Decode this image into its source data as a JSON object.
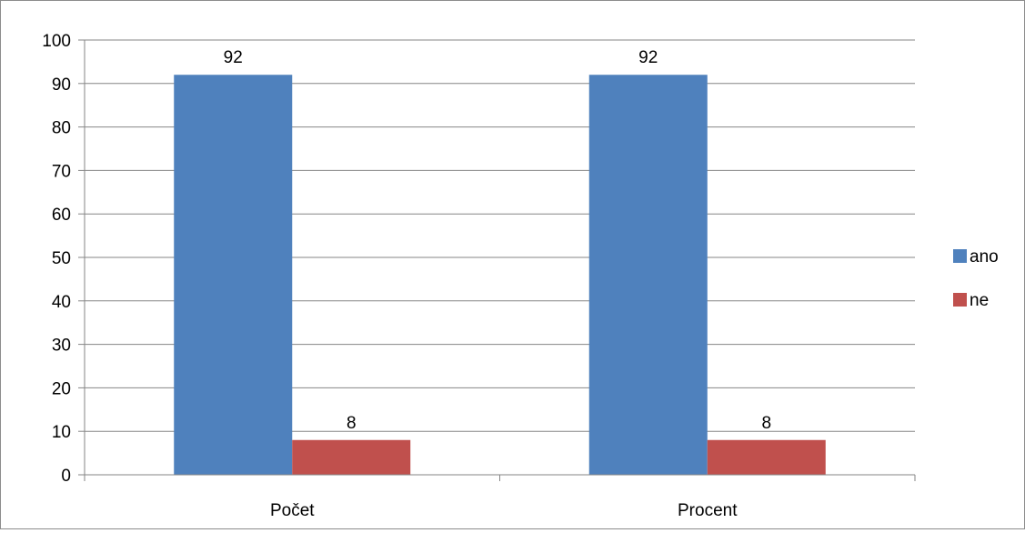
{
  "chart_data": {
    "type": "bar",
    "title": "",
    "xlabel": "",
    "ylabel": "",
    "categories": [
      "Počet",
      "Procent"
    ],
    "series": [
      {
        "name": "ano",
        "values": [
          92,
          92
        ],
        "color": "#4f81bd"
      },
      {
        "name": "ne",
        "values": [
          8,
          8
        ],
        "color": "#c0504d"
      }
    ],
    "ylim": [
      0,
      100
    ],
    "y_ticks": [
      "0",
      "10",
      "20",
      "30",
      "40",
      "50",
      "60",
      "70",
      "80",
      "90",
      "100"
    ],
    "data_labels": [
      [
        "92",
        "92"
      ],
      [
        "8",
        "8"
      ]
    ],
    "grid": true,
    "legend_position": "right",
    "colors": {
      "grid": "#868686",
      "axis": "#868686",
      "frame": "#8c8c8c"
    }
  }
}
